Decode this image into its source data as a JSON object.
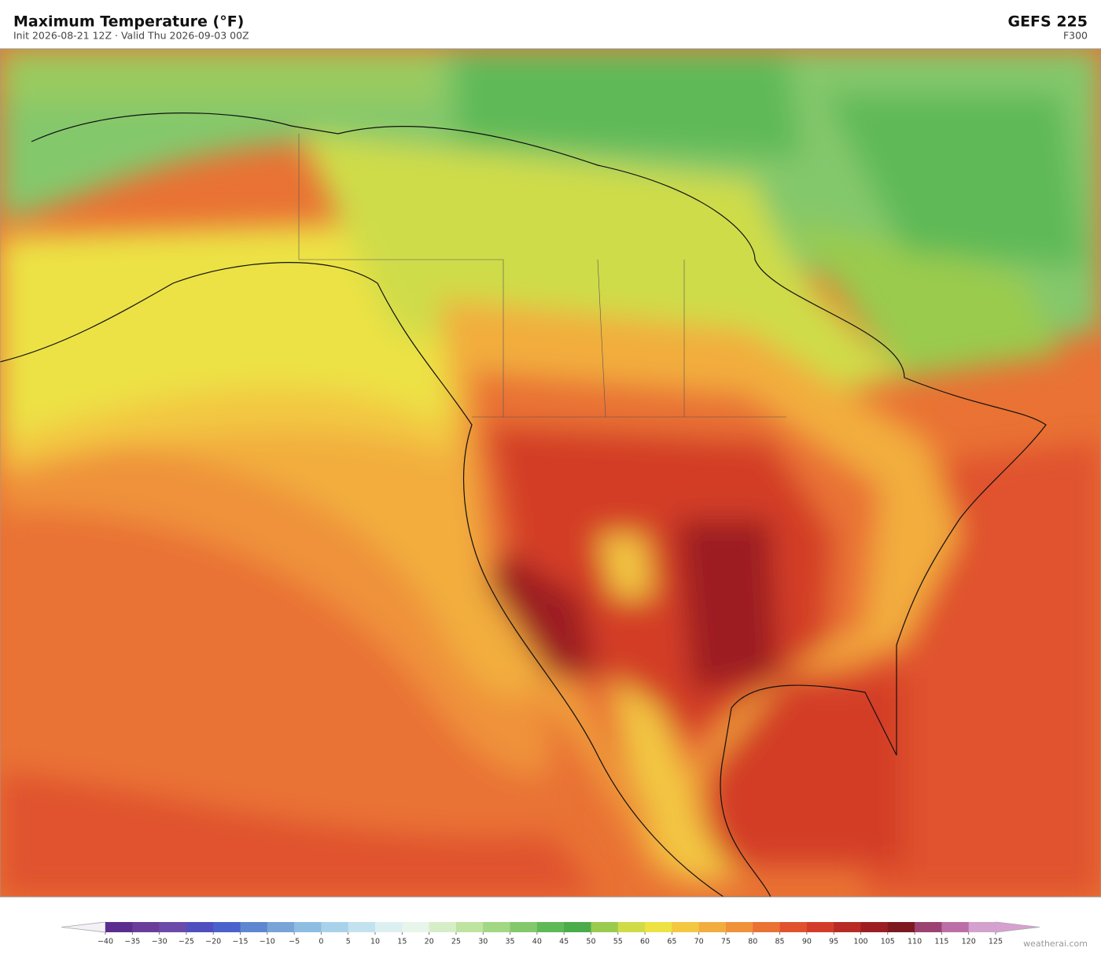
{
  "header": {
    "title": "Maximum Temperature  (°F)",
    "subtitle": "Init 2026-08-21 12Z   ·   Valid Thu 2026-09-03 00Z",
    "model": "GEFS  225",
    "forecast_hour": "F300"
  },
  "colorbar": {
    "ticks": [
      {
        "value": -40,
        "label": "−40"
      },
      {
        "value": -35,
        "label": "−35"
      },
      {
        "value": -30,
        "label": "−30"
      },
      {
        "value": -25,
        "label": "−25"
      },
      {
        "value": -20,
        "label": "−20"
      },
      {
        "value": -15,
        "label": "−15"
      },
      {
        "value": -10,
        "label": "−10"
      },
      {
        "value": -5,
        "label": "−5"
      },
      0,
      5,
      10,
      15,
      20,
      25,
      30,
      35,
      40,
      45,
      50,
      55,
      60,
      65,
      70,
      75,
      80,
      85,
      90,
      95,
      100,
      105,
      110,
      115,
      120,
      125
    ],
    "colors": [
      "#5b2d8e",
      "#6a3d9a",
      "#6b4aaa",
      "#4f4fbf",
      "#4a62cc",
      "#5f86d0",
      "#7aa3d8",
      "#8ebde2",
      "#a8d2ea",
      "#c3e2ef",
      "#dcf0f2",
      "#e8f5ea",
      "#d6eec8",
      "#bfe3a0",
      "#a2d784",
      "#84c86c",
      "#5fb957",
      "#4aac4a",
      "#9acb4e",
      "#cfdc48",
      "#ece244",
      "#f3c742",
      "#f2ad3e",
      "#ef923a",
      "#e97234",
      "#e0522d",
      "#d33c28",
      "#b82a25",
      "#9c1e22",
      "#7c1a20",
      "#9b4272",
      "#bc6fa6",
      "#d3a1cd"
    ]
  },
  "footer": {
    "credit": "weatherai.com"
  }
}
